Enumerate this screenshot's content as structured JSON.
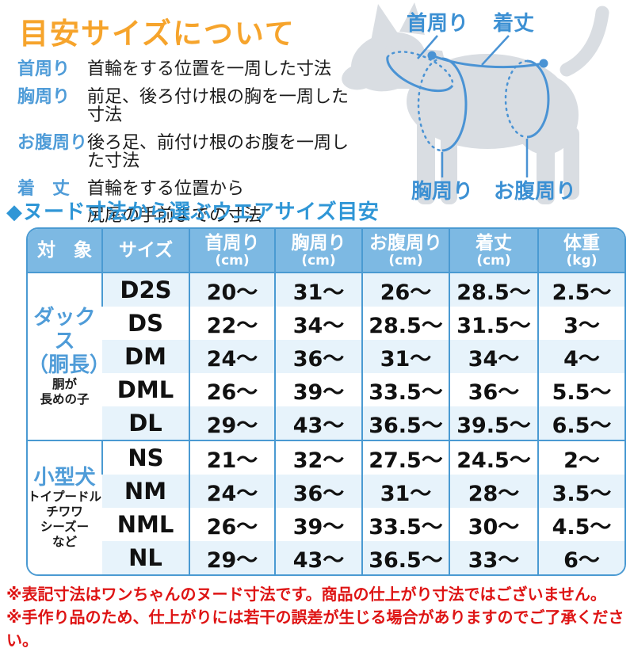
{
  "title": "目安サイズについて",
  "legend": [
    {
      "term": "首周り",
      "desc": "首輪をする位置を一周した寸法"
    },
    {
      "term": "胸周り",
      "desc": "前足、後ろ付け根の胸を一周した寸法"
    },
    {
      "term": "お腹周り",
      "desc": "後ろ足、前付け根のお腹を一周した寸法"
    },
    {
      "term": "着　丈",
      "desc": "首輪をする位置から\n尻尾の手前までの寸法"
    }
  ],
  "diagram": {
    "neck_label": "首周り",
    "length_label": "着丈",
    "chest_label": "胸周り",
    "belly_label": "お腹周り"
  },
  "section_title": "◆ヌード寸法から選ぶウエアサイズ目安",
  "table": {
    "headers": [
      {
        "label": "対　象",
        "unit": ""
      },
      {
        "label": "サイズ",
        "unit": ""
      },
      {
        "label": "首周り",
        "unit": "(cm)"
      },
      {
        "label": "胸周り",
        "unit": "(cm)"
      },
      {
        "label": "お腹周り",
        "unit": "(cm)"
      },
      {
        "label": "着丈",
        "unit": "(cm)"
      },
      {
        "label": "体重",
        "unit": "(kg)"
      }
    ],
    "groups": [
      {
        "name_lines": [
          "ダックス",
          "（胴長）"
        ],
        "note_lines": [
          "胴が",
          "長めの子"
        ],
        "rows": [
          {
            "size": "D2S",
            "values": [
              "20〜",
              "31〜",
              "26〜",
              "28.5〜",
              "2.5〜"
            ]
          },
          {
            "size": "DS",
            "values": [
              "22〜",
              "34〜",
              "28.5〜",
              "31.5〜",
              "3〜"
            ]
          },
          {
            "size": "DM",
            "values": [
              "24〜",
              "36〜",
              "31〜",
              "34〜",
              "4〜"
            ]
          },
          {
            "size": "DML",
            "values": [
              "26〜",
              "39〜",
              "33.5〜",
              "36〜",
              "5.5〜"
            ]
          },
          {
            "size": "DL",
            "values": [
              "29〜",
              "43〜",
              "36.5〜",
              "39.5〜",
              "6.5〜"
            ]
          }
        ]
      },
      {
        "name_lines": [
          "小型犬"
        ],
        "note_lines": [
          "トイプードル",
          "チワワ",
          "シーズー",
          "など"
        ],
        "rows": [
          {
            "size": "NS",
            "values": [
              "21〜",
              "32〜",
              "27.5〜",
              "24.5〜",
              "2〜"
            ]
          },
          {
            "size": "NM",
            "values": [
              "24〜",
              "36〜",
              "31〜",
              "28〜",
              "3.5〜"
            ]
          },
          {
            "size": "NML",
            "values": [
              "26〜",
              "39〜",
              "33.5〜",
              "30〜",
              "4.5〜"
            ]
          },
          {
            "size": "NL",
            "values": [
              "29〜",
              "43〜",
              "36.5〜",
              "33〜",
              "6〜"
            ]
          }
        ]
      }
    ]
  },
  "notes": [
    "※表記寸法はワンちゃんのヌード寸法です。商品の仕上がり寸法ではございません。",
    "※手作り品のため、仕上がりには若干の誤差が生じる場合がありますのでご了承ください。"
  ],
  "colors": {
    "title_orange": "#f6a42c",
    "label_blue": "#4f9cd8",
    "section_blue": "#2f96d6",
    "table_border": "#4a9ad2",
    "header_bg": "#7db9e3",
    "alt_row_bg": "#e7f3fb",
    "note_red": "#de1414",
    "dog_gray": "#d9dde2",
    "diagram_blue": "#4a93d4"
  }
}
